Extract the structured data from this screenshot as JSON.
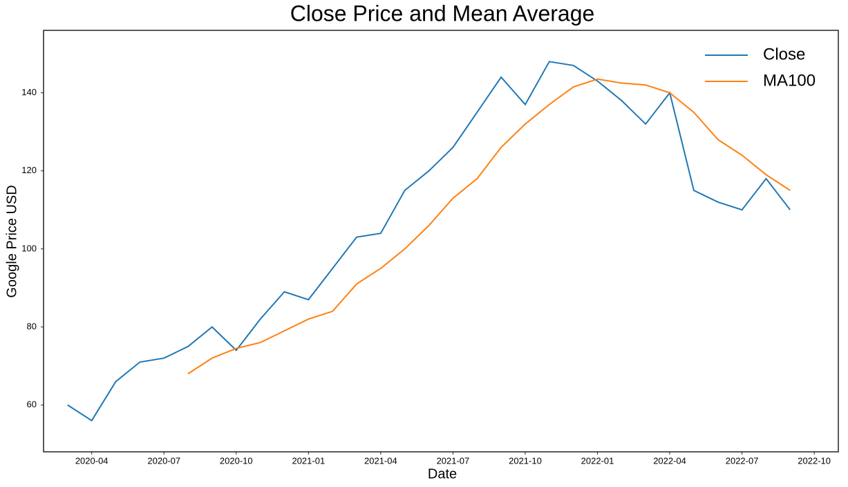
{
  "chart_data": {
    "type": "line",
    "title": "Close Price and Mean Average",
    "x_label": "Date",
    "y_label": "Google Price USD",
    "x": [
      "2020-03",
      "2020-04",
      "2020-05",
      "2020-06",
      "2020-07",
      "2020-08",
      "2020-09",
      "2020-10",
      "2020-11",
      "2020-12",
      "2021-01",
      "2021-02",
      "2021-03",
      "2021-04",
      "2021-05",
      "2021-06",
      "2021-07",
      "2021-08",
      "2021-09",
      "2021-10",
      "2021-11",
      "2021-12",
      "2022-01",
      "2022-02",
      "2022-03",
      "2022-04",
      "2022-05",
      "2022-06",
      "2022-07",
      "2022-08",
      "2022-09"
    ],
    "series": [
      {
        "name": "Close",
        "color": "#1f77b4",
        "values": [
          60,
          56,
          66,
          71,
          72,
          75,
          80,
          74,
          82,
          89,
          87,
          95,
          103,
          104,
          115,
          120,
          126,
          135,
          144,
          137,
          148,
          147,
          143,
          138,
          132,
          140,
          115,
          112,
          110,
          118,
          110
        ]
      },
      {
        "name": "MA100",
        "color": "#ff7f0e",
        "values": [
          null,
          null,
          null,
          null,
          null,
          68,
          72,
          74.5,
          76,
          79,
          82,
          84,
          91,
          95,
          100,
          106,
          113,
          118,
          126,
          132,
          137,
          141.5,
          143.5,
          142.5,
          142,
          140,
          135,
          128,
          124,
          119,
          115
        ]
      }
    ],
    "xlim": [
      "2020-02",
      "2022-11"
    ],
    "xticks": [
      "2020-04",
      "2020-07",
      "2020-10",
      "2021-01",
      "2021-04",
      "2021-07",
      "2021-10",
      "2022-01",
      "2022-04",
      "2022-07",
      "2022-10"
    ],
    "ylim": [
      48,
      156
    ],
    "yticks": [
      60,
      80,
      100,
      120,
      140
    ],
    "grid": false,
    "legend": "upper right"
  }
}
